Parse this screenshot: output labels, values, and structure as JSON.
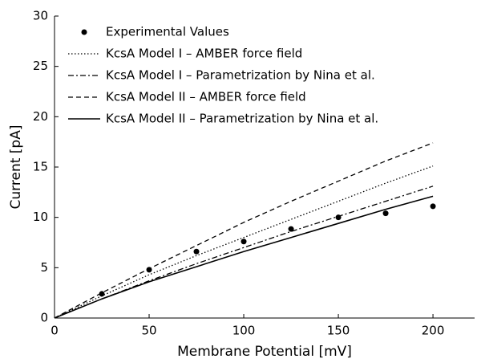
{
  "chart_data": {
    "type": "line",
    "x_label": "Membrane Potential [mV]",
    "y_label": "Current [pA]",
    "x": [
      0,
      25,
      50,
      75,
      100,
      125,
      150,
      175,
      200
    ],
    "series": [
      {
        "name": "Experimental Values",
        "color": "#000000",
        "style": "marker",
        "values": [
          null,
          2.4,
          4.8,
          6.6,
          7.6,
          8.85,
          10.0,
          10.4,
          11.1
        ]
      },
      {
        "name": "KcsA Model I – AMBER force field",
        "color": "#000000",
        "style": "dotted",
        "values": [
          0,
          2.2,
          4.3,
          6.2,
          8.0,
          9.8,
          11.6,
          13.4,
          15.1
        ]
      },
      {
        "name": "KcsA Model I – Parametrization by Nina et al.",
        "color": "#000000",
        "style": "dashdot",
        "values": [
          0,
          1.9,
          3.7,
          5.4,
          7.0,
          8.6,
          10.1,
          11.6,
          13.1
        ]
      },
      {
        "name": "KcsA Model II – AMBER force field",
        "color": "#000000",
        "style": "dashed",
        "values": [
          0,
          2.5,
          4.9,
          7.2,
          9.5,
          11.6,
          13.6,
          15.6,
          17.4
        ]
      },
      {
        "name": "KcsA Model II – Parametrization by Nina et al.",
        "color": "#000000",
        "style": "solid",
        "values": [
          0,
          1.9,
          3.6,
          5.1,
          6.6,
          8.0,
          9.4,
          10.8,
          12.1
        ]
      }
    ],
    "xlim": [
      0,
      222
    ],
    "ylim": [
      0,
      30
    ],
    "xticks": [
      0,
      50,
      100,
      150,
      200
    ],
    "yticks": [
      0,
      5,
      10,
      15,
      20,
      25,
      30
    ]
  }
}
